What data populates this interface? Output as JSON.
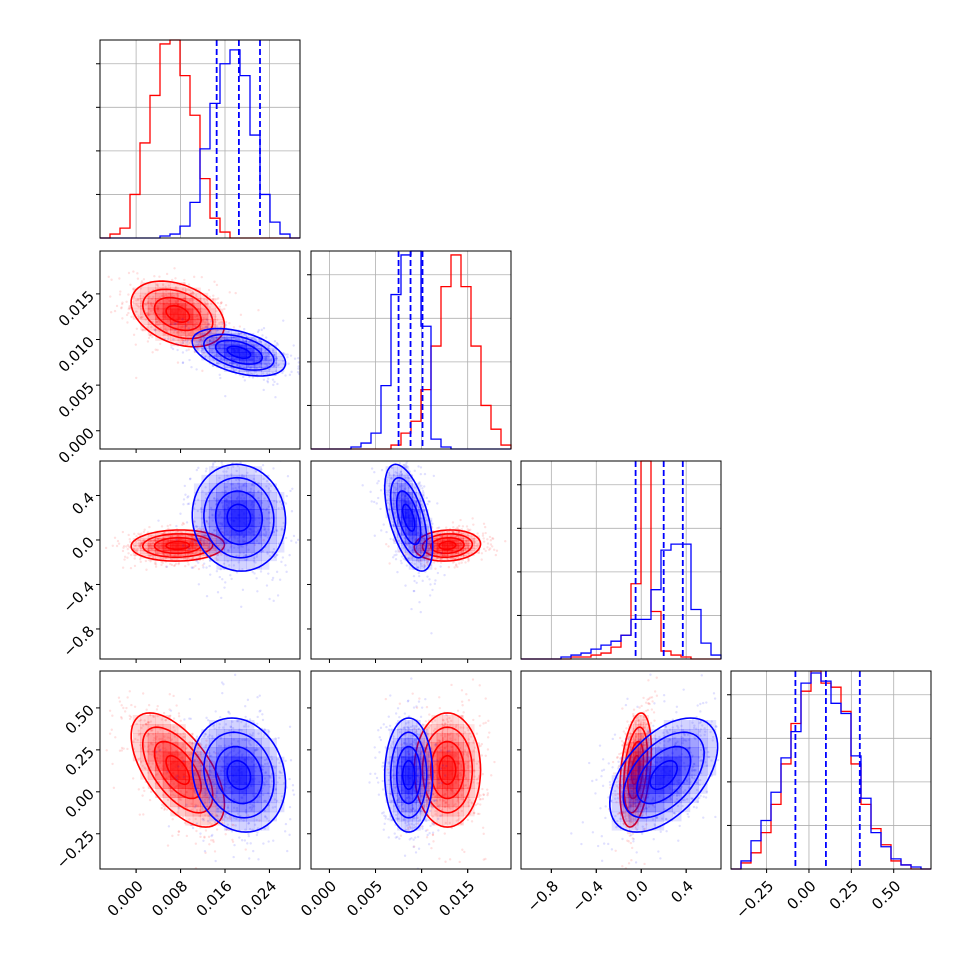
{
  "chart_data": {
    "type": "corner",
    "series": [
      {
        "color": "#ff0000"
      },
      {
        "color": "#0000ff"
      }
    ],
    "grid": true,
    "quantile_color": "#0000ff",
    "params": [
      {
        "range": [
          -0.0065,
          0.0295
        ],
        "ticks": [
          "0.000",
          "0.008",
          "0.016",
          "0.024"
        ],
        "tick_values": [
          0.0,
          0.008,
          0.016,
          0.024
        ]
      },
      {
        "range": [
          -0.002,
          0.0197
        ],
        "ticks": [
          "0.000",
          "0.005",
          "0.010",
          "0.015"
        ],
        "tick_values": [
          0.0,
          0.005,
          0.01,
          0.015
        ]
      },
      {
        "range": [
          -1.07,
          0.71
        ],
        "ticks": [
          "−0.8",
          "−0.4",
          "0.0",
          "0.4"
        ],
        "tick_values": [
          -0.8,
          -0.4,
          0.0,
          0.4
        ]
      },
      {
        "range": [
          -0.46,
          0.72
        ],
        "ticks": [
          "−0.25",
          "0.00",
          "0.25",
          "0.50"
        ],
        "tick_values": [
          -0.25,
          0.0,
          0.25,
          0.5
        ]
      }
    ],
    "quantiles": [
      [
        0.0145,
        0.0185,
        0.0223
      ],
      [
        0.0075,
        0.0088,
        0.0101
      ],
      [
        -0.05,
        0.2,
        0.37
      ],
      [
        -0.08,
        0.1,
        0.3
      ]
    ],
    "histograms": [
      {
        "bin_edges": [
          -0.0065,
          -0.0047,
          -0.0029,
          -0.0011,
          0.0007,
          0.0025,
          0.0043,
          0.0061,
          0.0079,
          0.0097,
          0.0115,
          0.0133,
          0.0151,
          0.0169,
          0.0187,
          0.0205,
          0.0223,
          0.0241,
          0.0259,
          0.0277,
          0.0295
        ],
        "red": [
          0.0,
          0.02,
          0.05,
          0.22,
          0.48,
          0.72,
          0.98,
          1.0,
          0.82,
          0.62,
          0.3,
          0.1,
          0.03,
          0.0,
          0.0,
          0.0,
          0.0,
          0.0,
          0.0,
          0.0
        ],
        "blue": [
          0.0,
          0.0,
          0.0,
          0.0,
          0.0,
          0.0,
          0.01,
          0.02,
          0.06,
          0.18,
          0.45,
          0.68,
          0.88,
          0.95,
          0.82,
          0.52,
          0.22,
          0.08,
          0.02,
          0.0
        ]
      },
      {
        "bin_edges": [
          -0.002,
          -0.000915,
          0.00017,
          0.001255,
          0.00234,
          0.003425,
          0.00451,
          0.005595,
          0.00668,
          0.007765,
          0.00885,
          0.009935,
          0.01102,
          0.012105,
          0.01319,
          0.014275,
          0.01536,
          0.016445,
          0.01753,
          0.018615,
          0.0197
        ],
        "red": [
          0.0,
          0.0,
          0.0,
          0.0,
          0.0,
          0.0,
          0.0,
          0.0,
          0.02,
          0.08,
          0.14,
          0.3,
          0.52,
          0.82,
          0.98,
          0.82,
          0.52,
          0.22,
          0.1,
          0.02
        ],
        "blue": [
          0.0,
          0.0,
          0.0,
          0.0,
          0.01,
          0.03,
          0.08,
          0.32,
          0.78,
          0.98,
          1.0,
          0.62,
          0.05,
          0.01,
          0.0,
          0.0,
          0.0,
          0.0,
          0.0,
          0.0
        ]
      },
      {
        "bin_edges": [
          -1.07,
          -0.981,
          -0.892,
          -0.803,
          -0.714,
          -0.625,
          -0.536,
          -0.447,
          -0.358,
          -0.269,
          -0.18,
          -0.091,
          -0.002,
          0.087,
          0.176,
          0.265,
          0.354,
          0.443,
          0.532,
          0.621,
          0.71
        ],
        "red": [
          0.0,
          0.0,
          0.0,
          0.0,
          0.0,
          0.01,
          0.01,
          0.02,
          0.03,
          0.06,
          0.12,
          0.38,
          1.0,
          0.24,
          0.04,
          0.02,
          0.01,
          0.0,
          0.0,
          0.0
        ],
        "blue": [
          0.0,
          0.0,
          0.0,
          0.0,
          0.01,
          0.02,
          0.03,
          0.05,
          0.07,
          0.09,
          0.12,
          0.2,
          0.2,
          0.35,
          0.55,
          0.58,
          0.58,
          0.25,
          0.08,
          0.02
        ]
      },
      {
        "bin_edges": [
          -0.46,
          -0.401,
          -0.342,
          -0.283,
          -0.224,
          -0.165,
          -0.106,
          -0.047,
          0.012,
          0.071,
          0.13,
          0.189,
          0.248,
          0.307,
          0.366,
          0.425,
          0.484,
          0.543,
          0.602,
          0.661,
          0.72
        ],
        "red": [
          0.0,
          0.03,
          0.08,
          0.18,
          0.32,
          0.52,
          0.72,
          0.88,
          0.98,
          0.92,
          0.9,
          0.78,
          0.52,
          0.32,
          0.2,
          0.12,
          0.04,
          0.02,
          0.0,
          0.0
        ],
        "blue": [
          0.0,
          0.04,
          0.14,
          0.24,
          0.38,
          0.55,
          0.68,
          0.92,
          0.97,
          0.93,
          0.82,
          0.77,
          0.56,
          0.35,
          0.18,
          0.11,
          0.05,
          0.02,
          0.01,
          0.0
        ]
      }
    ],
    "distributions": [
      {
        "color": "#ff0000",
        "mean": [
          0.0075,
          0.0128,
          -0.05,
          0.13
        ],
        "sd": [
          0.0042,
          0.0018,
          0.07,
          0.17
        ],
        "corr": [
          [
            1,
            -0.35,
            0.05,
            -0.6
          ],
          [
            -0.35,
            1,
            0.1,
            0.0
          ],
          [
            0.05,
            0.1,
            1,
            0.35
          ],
          [
            -0.6,
            0.0,
            0.35,
            1
          ]
        ]
      },
      {
        "color": "#0000ff",
        "mean": [
          0.0185,
          0.0086,
          0.2,
          0.1
        ],
        "sd": [
          0.0042,
          0.0013,
          0.24,
          0.17
        ],
        "corr": [
          [
            1,
            -0.45,
            -0.05,
            -0.15
          ],
          [
            -0.45,
            1,
            -0.55,
            0.0
          ],
          [
            -0.05,
            -0.55,
            1,
            0.5
          ],
          [
            -0.15,
            0.0,
            0.5,
            1
          ]
        ]
      }
    ]
  }
}
